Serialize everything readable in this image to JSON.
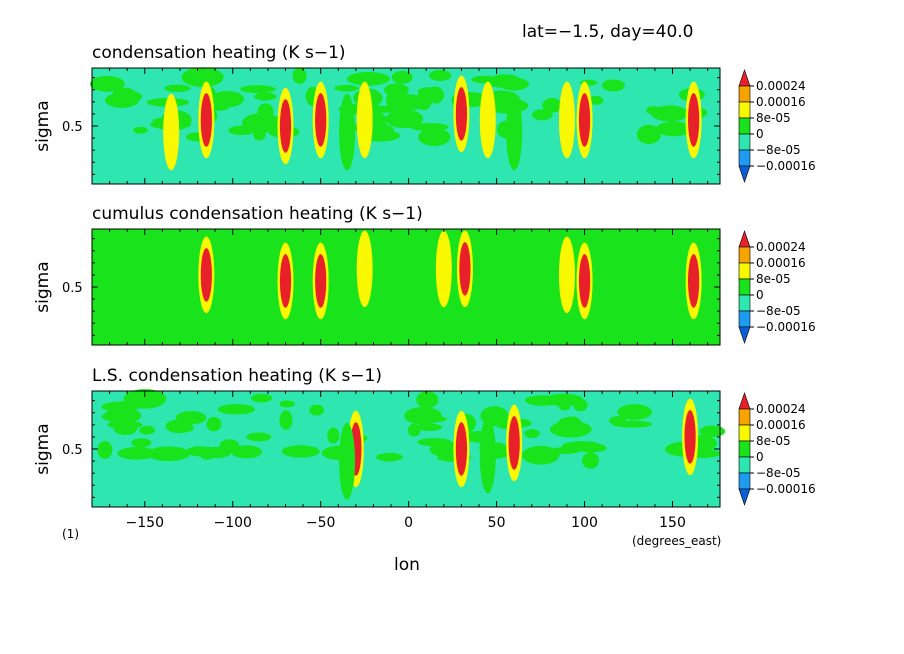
{
  "header": {
    "label": "lat=−1.5, day=40.0"
  },
  "footer": {
    "figure_number": "(1)",
    "units_note": "(degrees_east)"
  },
  "colors": {
    "dark_blue": "#0b5fd6",
    "blue": "#1d9bf0",
    "teal": "#2ee6b0",
    "green": "#19e31b",
    "yellow": "#f8f800",
    "orange": "#f7a300",
    "red": "#e8202a"
  },
  "colorbar": {
    "labels": [
      "0.00024",
      "0.00016",
      "8e-05",
      "0",
      "−8e-05",
      "−0.00016"
    ],
    "levels": [
      -0.00024,
      -0.00016,
      -8e-05,
      0,
      8e-05,
      0.00016,
      0.00024
    ]
  },
  "chart_data": [
    {
      "type": "heatmap",
      "title": "condensation heating (K s−1)",
      "xlabel": "lon",
      "ylabel": "sigma",
      "xlim": [
        -180,
        177
      ],
      "x_ticks": [
        -150,
        -100,
        -50,
        0,
        50,
        100,
        150
      ],
      "y_ticks": [
        0.5
      ],
      "features": [
        {
          "lon": -135,
          "sigma": 0.55,
          "value": 0.0001
        },
        {
          "lon": -115,
          "sigma": 0.45,
          "value": 0.0003
        },
        {
          "lon": -70,
          "sigma": 0.5,
          "value": 0.0003
        },
        {
          "lon": -50,
          "sigma": 0.45,
          "value": 0.0003
        },
        {
          "lon": -25,
          "sigma": 0.45,
          "value": 0.00012
        },
        {
          "lon": 30,
          "sigma": 0.4,
          "value": 0.0003
        },
        {
          "lon": 45,
          "sigma": 0.45,
          "value": 0.00012
        },
        {
          "lon": 90,
          "sigma": 0.45,
          "value": 0.00012
        },
        {
          "lon": 100,
          "sigma": 0.45,
          "value": 0.0002
        },
        {
          "lon": 162,
          "sigma": 0.45,
          "value": 0.0003
        },
        {
          "lon": -35,
          "sigma": 0.55,
          "value": -0.00012
        },
        {
          "lon": 60,
          "sigma": 0.55,
          "value": -0.00012
        }
      ]
    },
    {
      "type": "heatmap",
      "title": "cumulus condensation heating (K s−1)",
      "xlabel": "lon",
      "ylabel": "sigma",
      "xlim": [
        -180,
        177
      ],
      "x_ticks": [
        -150,
        -100,
        -50,
        0,
        50,
        100,
        150
      ],
      "y_ticks": [
        0.5
      ],
      "features": [
        {
          "lon": -115,
          "sigma": 0.4,
          "value": 0.0003
        },
        {
          "lon": -70,
          "sigma": 0.45,
          "value": 0.0003
        },
        {
          "lon": -50,
          "sigma": 0.45,
          "value": 0.0003
        },
        {
          "lon": -25,
          "sigma": 0.35,
          "value": 0.0001
        },
        {
          "lon": 20,
          "sigma": 0.35,
          "value": 0.0001
        },
        {
          "lon": 32,
          "sigma": 0.35,
          "value": 0.0003
        },
        {
          "lon": 90,
          "sigma": 0.4,
          "value": 0.00012
        },
        {
          "lon": 100,
          "sigma": 0.45,
          "value": 0.0003
        },
        {
          "lon": 162,
          "sigma": 0.45,
          "value": 0.0003
        }
      ]
    },
    {
      "type": "heatmap",
      "title": "L.S. condensation heating (K s−1)",
      "xlabel": "lon",
      "ylabel": "sigma",
      "xlim": [
        -180,
        177
      ],
      "x_ticks": [
        -150,
        -100,
        -50,
        0,
        50,
        100,
        150
      ],
      "y_ticks": [
        0.5
      ],
      "features": [
        {
          "lon": -30,
          "sigma": 0.5,
          "value": 0.0003
        },
        {
          "lon": 30,
          "sigma": 0.5,
          "value": 0.0002
        },
        {
          "lon": 60,
          "sigma": 0.45,
          "value": 0.0003
        },
        {
          "lon": 160,
          "sigma": 0.4,
          "value": 0.0003
        },
        {
          "lon": -35,
          "sigma": 0.6,
          "value": -0.00012
        },
        {
          "lon": 45,
          "sigma": 0.55,
          "value": -0.00012
        }
      ]
    }
  ]
}
